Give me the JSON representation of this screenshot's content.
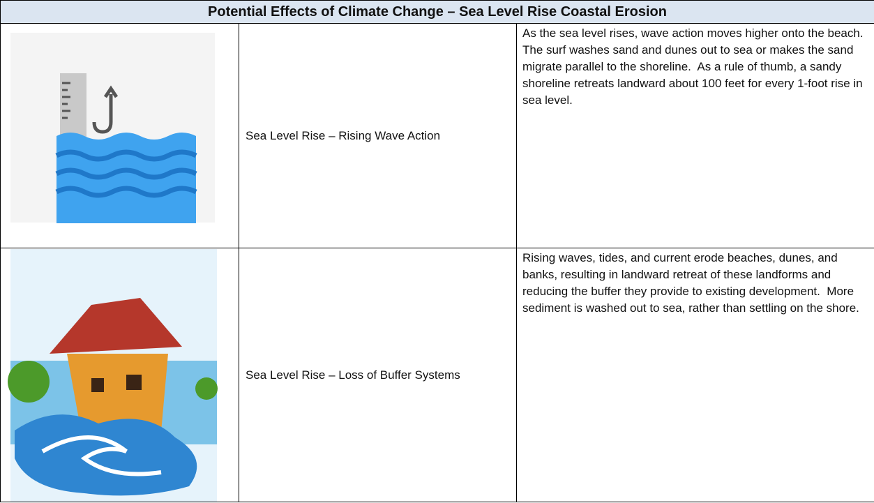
{
  "table": {
    "title": "Potential Effects of Climate Change – Sea Level Rise Coastal Erosion",
    "rows": [
      {
        "label": "Sea Level Rise – Rising Wave Action",
        "description": "As the sea level rises, wave action moves higher onto the beach.  The surf washes sand and dunes out to sea or makes the sand migrate parallel to the shoreline.  As a rule of thumb, a sandy shoreline retreats landward about 100 feet for every 1-foot rise in sea level."
      },
      {
        "label": "Sea Level Rise – Loss of Buffer Systems",
        "description": "Rising waves, tides, and current erode beaches, dunes, and banks, resulting in landward retreat of these landforms and reducing the buffer they provide to existing development.  More sediment is washed out to sea, rather than settling on the shore."
      }
    ]
  }
}
